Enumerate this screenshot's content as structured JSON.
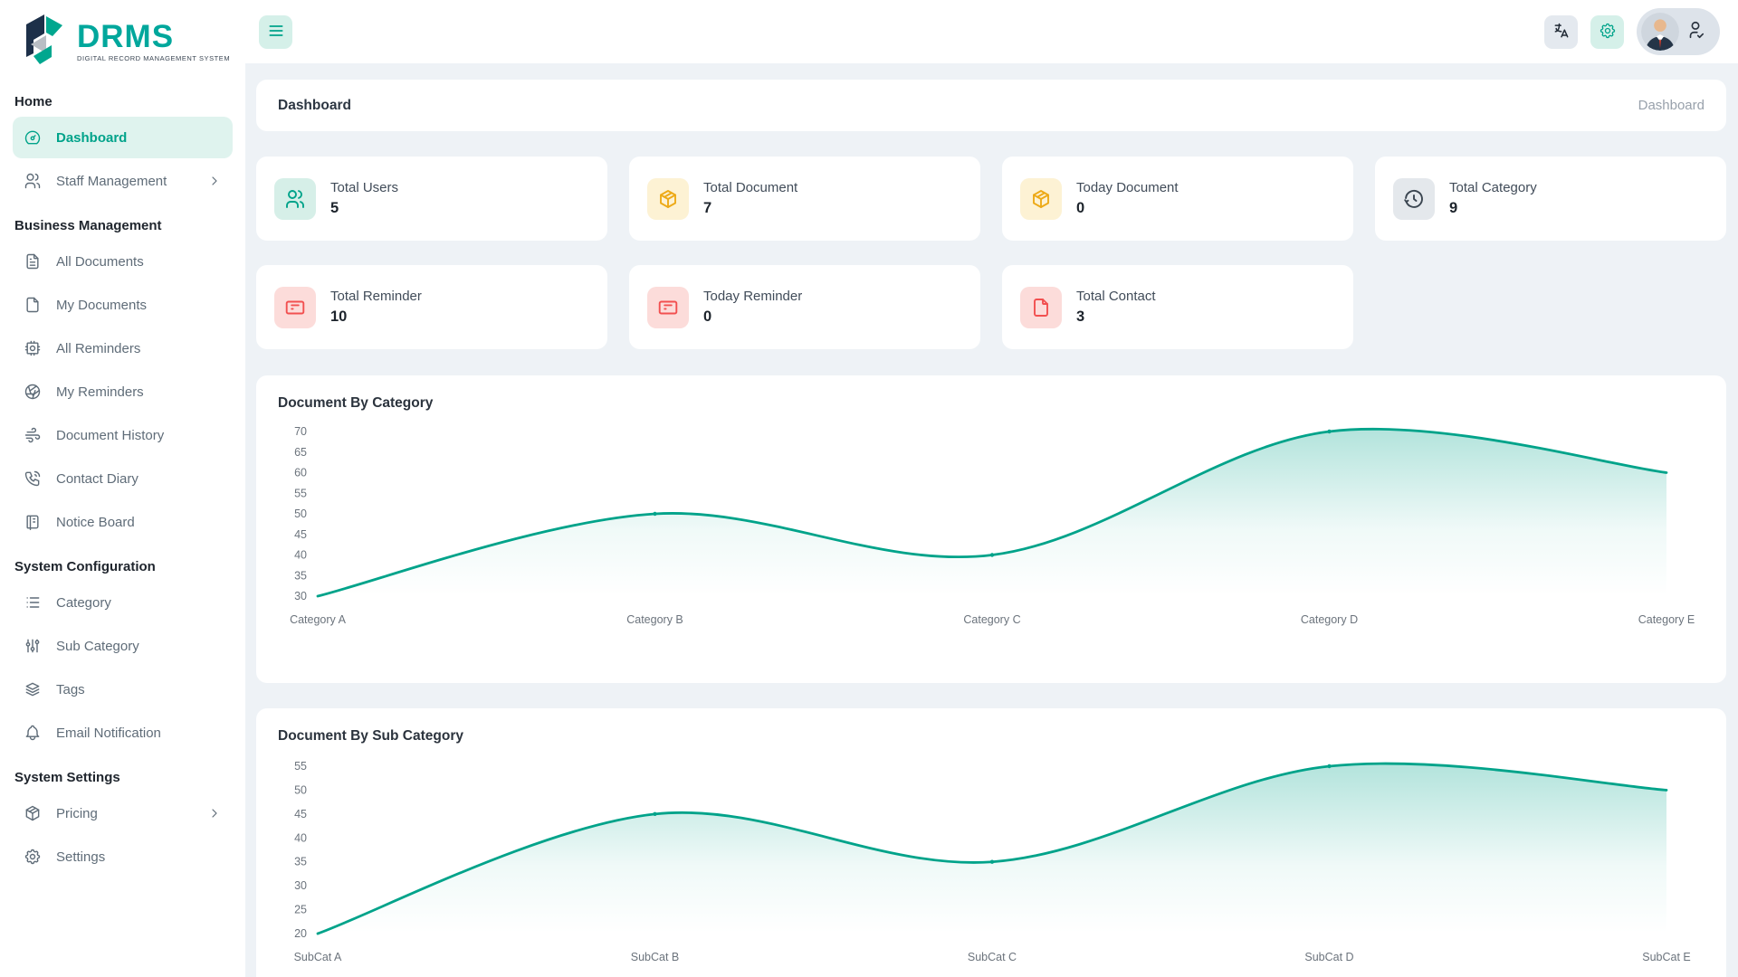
{
  "app": {
    "brand": "DRMS",
    "tagline": "DIGITAL RECORD MANAGEMENT SYSTEM"
  },
  "topbar": {
    "menu_icon": "menu-icon",
    "language_button": "language-icon",
    "settings_button": "gear-icon",
    "profile": {
      "avatar": "user-avatar",
      "badge_icon": "user-check-icon"
    }
  },
  "header": {
    "title": "Dashboard",
    "breadcrumb": "Dashboard"
  },
  "sidebar": {
    "sections": [
      {
        "label": "Home",
        "items": [
          {
            "label": "Dashboard",
            "icon": "dashboard-icon",
            "active": true
          },
          {
            "label": "Staff Management",
            "icon": "users-icon",
            "chevron": true
          }
        ]
      },
      {
        "label": "Business Management",
        "items": [
          {
            "label": "All Documents",
            "icon": "file-text-icon"
          },
          {
            "label": "My Documents",
            "icon": "file-icon"
          },
          {
            "label": "All Reminders",
            "icon": "cpu-icon"
          },
          {
            "label": "My Reminders",
            "icon": "aperture-icon"
          },
          {
            "label": "Document History",
            "icon": "wind-icon"
          },
          {
            "label": "Contact Diary",
            "icon": "phone-icon"
          },
          {
            "label": "Notice Board",
            "icon": "notebook-icon"
          }
        ]
      },
      {
        "label": "System Configuration",
        "items": [
          {
            "label": "Category",
            "icon": "list-icon"
          },
          {
            "label": "Sub Category",
            "icon": "adjustments-icon"
          },
          {
            "label": "Tags",
            "icon": "stack-icon"
          },
          {
            "label": "Email Notification",
            "icon": "bell-icon"
          }
        ]
      },
      {
        "label": "System Settings",
        "items": [
          {
            "label": "Pricing",
            "icon": "package-icon",
            "chevron": true
          },
          {
            "label": "Settings",
            "icon": "settings-icon"
          }
        ]
      }
    ]
  },
  "stats": [
    {
      "label": "Total Users",
      "value": "5",
      "icon": "users-icon",
      "theme": "teal"
    },
    {
      "label": "Total Document",
      "value": "7",
      "icon": "package-icon",
      "theme": "amber"
    },
    {
      "label": "Today Document",
      "value": "0",
      "icon": "package-icon",
      "theme": "amber"
    },
    {
      "label": "Total Category",
      "value": "9",
      "icon": "history-icon",
      "theme": "gray"
    },
    {
      "label": "Total Reminder",
      "value": "10",
      "icon": "card-icon",
      "theme": "red"
    },
    {
      "label": "Today Reminder",
      "value": "0",
      "icon": "card-icon",
      "theme": "red"
    },
    {
      "label": "Total Contact",
      "value": "3",
      "icon": "file-icon",
      "theme": "red"
    }
  ],
  "colors": {
    "accent": "#00a38a",
    "accent_light_bg": "#dff3ee",
    "amber": "#edaa18",
    "red": "#f25050",
    "dark": "#3a4550",
    "page_bg": "#eef2f6"
  },
  "chart_data": [
    {
      "type": "area",
      "title": "Document By Category",
      "categories": [
        "Category A",
        "Category B",
        "Category C",
        "Category D",
        "Category E"
      ],
      "values": [
        30,
        50,
        40,
        70,
        60
      ],
      "xlabel": "",
      "ylabel": "",
      "ylim": [
        30,
        70
      ],
      "ytick_step": 5,
      "grid": false,
      "legend": false,
      "line_color": "#00a38a",
      "curve": "smooth"
    },
    {
      "type": "area",
      "title": "Document By Sub Category",
      "categories": [
        "SubCat A",
        "SubCat B",
        "SubCat C",
        "SubCat D",
        "SubCat E"
      ],
      "values": [
        20,
        45,
        35,
        55,
        50
      ],
      "xlabel": "",
      "ylabel": "",
      "ylim": [
        20,
        55
      ],
      "ytick_step": 5,
      "grid": false,
      "legend": false,
      "line_color": "#00a38a",
      "curve": "smooth"
    }
  ]
}
